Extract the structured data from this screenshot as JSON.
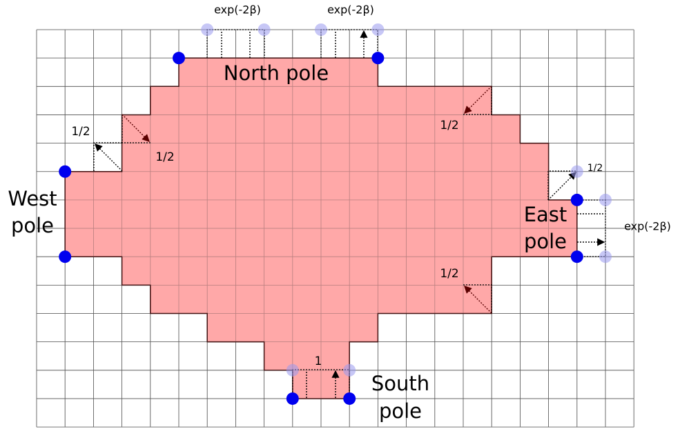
{
  "exp_labels": [
    "exp(-2β)",
    "exp(-2β)",
    "exp(-2β)"
  ],
  "north_pole": "North pole",
  "west_pole": [
    "West",
    "pole"
  ],
  "east_pole": [
    "East",
    "pole"
  ],
  "south_pole": [
    "South",
    "pole"
  ],
  "half_labels": [
    "1/2",
    "1/2",
    "1/2",
    "1/2",
    "1/2"
  ],
  "one_label": "1"
}
